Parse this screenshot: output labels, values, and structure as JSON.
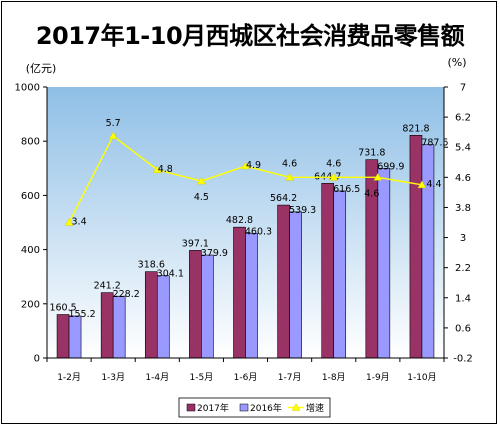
{
  "chart_data": {
    "type": "bar",
    "title": "2017年1-10月西城区社会消费品零售额",
    "left_unit": "(亿元)",
    "right_unit": "(%)",
    "categories": [
      "1-2月",
      "1-3月",
      "1-4月",
      "1-5月",
      "1-6月",
      "1-7月",
      "1-8月",
      "1-9月",
      "1-10月"
    ],
    "series": [
      {
        "name": "2017年",
        "type": "bar",
        "axis": "left",
        "color": "#993366",
        "values": [
          160.5,
          241.2,
          318.6,
          397.1,
          482.8,
          564.2,
          644.7,
          731.8,
          821.8
        ]
      },
      {
        "name": "2016年",
        "type": "bar",
        "axis": "left",
        "color": "#9999FF",
        "values": [
          155.2,
          228.2,
          304.1,
          379.9,
          460.3,
          539.3,
          616.5,
          699.9,
          787.5
        ]
      },
      {
        "name": "增速",
        "type": "line",
        "axis": "right",
        "color": "#FFFF00",
        "values": [
          3.4,
          5.7,
          4.8,
          4.5,
          4.9,
          4.6,
          4.6,
          4.6,
          4.4
        ]
      }
    ],
    "left_ticks": [
      "0",
      "200",
      "400",
      "600",
      "800",
      "1000"
    ],
    "left_range": [
      0,
      1000
    ],
    "right_ticks": [
      "-0.2",
      "0.6",
      "1.4",
      "2.2",
      "3",
      "3.8",
      "4.6",
      "5.4",
      "6.2",
      "7"
    ],
    "right_range": [
      -0.2,
      7
    ],
    "grid": false,
    "legend_position": "bottom"
  }
}
